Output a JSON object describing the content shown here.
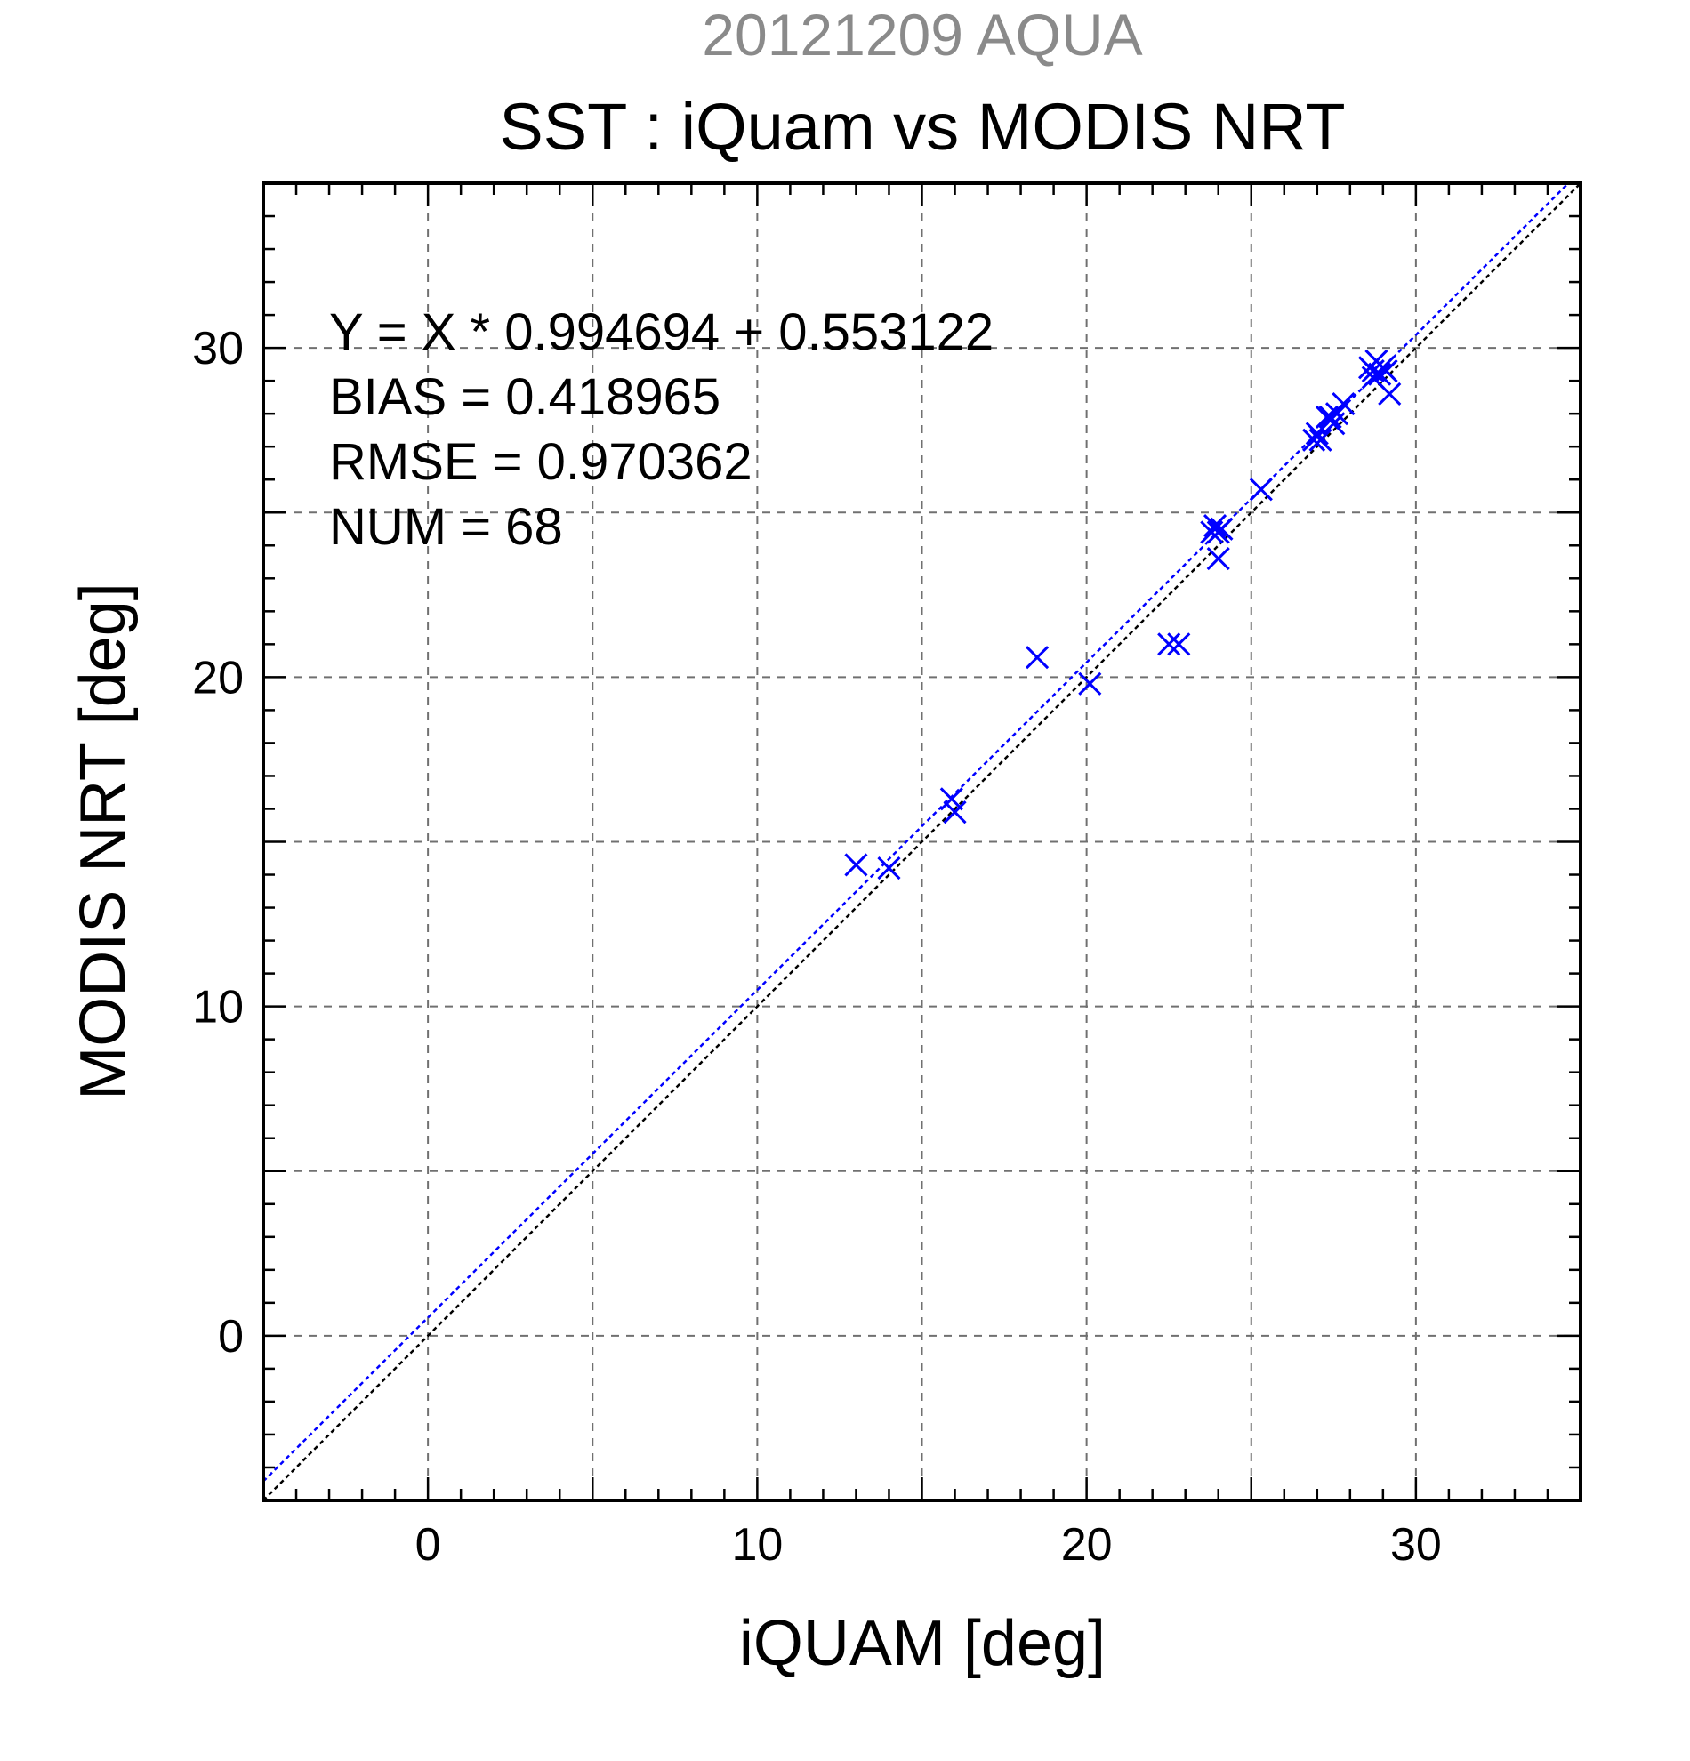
{
  "chart_data": {
    "type": "scatter",
    "supertitle": "20121209 AQUA",
    "title": "SST : iQuam vs MODIS NRT",
    "xlabel": "iQUAM [deg]",
    "ylabel": "MODIS NRT [deg]",
    "xlim": [
      -5,
      35
    ],
    "ylim": [
      -5,
      35
    ],
    "xticks": [
      0,
      10,
      20,
      30
    ],
    "yticks": [
      0,
      10,
      20,
      30
    ],
    "tick_labels_x": [
      "0",
      "10",
      "20",
      "30"
    ],
    "tick_labels_y": [
      "0",
      "10",
      "20",
      "30"
    ],
    "grid": true,
    "grid_step": 5,
    "minor_tick_step": 1,
    "stats": [
      "Y = X * 0.994694 + 0.553122",
      "BIAS = 0.418965",
      "RMSE = 0.970362",
      "NUM = 68"
    ],
    "fit_line": {
      "slope": 0.994694,
      "intercept": 0.553122,
      "color": "#0000ff"
    },
    "identity_line": {
      "slope": 1,
      "intercept": 0,
      "color": "#000000"
    },
    "marker": "x",
    "marker_color": "#0000ff",
    "points": [
      [
        13.0,
        14.3
      ],
      [
        14.0,
        14.2
      ],
      [
        15.9,
        16.3
      ],
      [
        16.0,
        15.9
      ],
      [
        18.5,
        20.6
      ],
      [
        20.1,
        19.8
      ],
      [
        22.5,
        21.0
      ],
      [
        22.8,
        21.0
      ],
      [
        23.8,
        24.4
      ],
      [
        23.9,
        24.6
      ],
      [
        24.0,
        24.4
      ],
      [
        24.1,
        24.5
      ],
      [
        24.0,
        23.6
      ],
      [
        25.3,
        25.7
      ],
      [
        26.9,
        27.2
      ],
      [
        27.0,
        27.4
      ],
      [
        27.1,
        27.2
      ],
      [
        27.4,
        27.9
      ],
      [
        27.5,
        27.7
      ],
      [
        27.6,
        28.0
      ],
      [
        27.8,
        28.3
      ],
      [
        27.3,
        27.9
      ],
      [
        28.6,
        29.4
      ],
      [
        28.7,
        29.3
      ],
      [
        28.8,
        29.6
      ],
      [
        28.9,
        29.2
      ],
      [
        29.0,
        29.4
      ],
      [
        29.1,
        29.3
      ],
      [
        28.7,
        29.1
      ],
      [
        29.2,
        28.6
      ]
    ]
  }
}
